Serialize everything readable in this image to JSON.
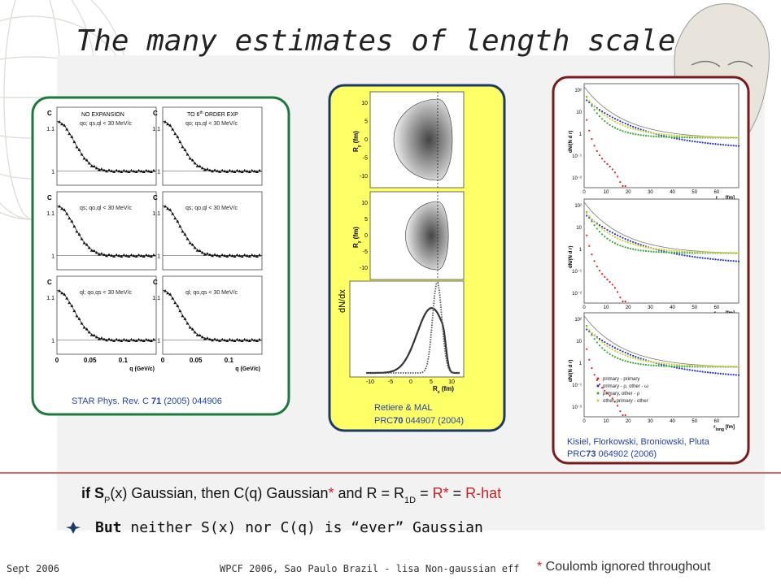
{
  "title": "The many estimates of length scale",
  "star_panel": {
    "headers": [
      [
        "NO EXPANSION"
      ],
      [
        "TO 6",
        "th",
        " ORDER EXP"
      ]
    ],
    "cuts": [
      "qo; qs,ql < 30 MeV/c",
      "qs; qo,ql < 30 MeV/c",
      "ql; qo,qs < 30 MeV/c"
    ],
    "y_label": "C",
    "y_ticks": [
      "1",
      "1.1"
    ],
    "x_ticks": [
      "0",
      "0.05",
      "0.1"
    ],
    "x_label": "q (GeV/c)",
    "caption": [
      "STAR Phys. Rev. C ",
      "71",
      " (2005)  044906"
    ]
  },
  "retiere_panel": {
    "y_label": [
      "R",
      "y",
      " (fm)"
    ],
    "y_ticks": [
      "10",
      "5",
      "0",
      "-5",
      "-10"
    ],
    "dist_label": "dN/dx",
    "x_ticks": [
      "-10",
      "-5",
      "0",
      "5",
      "10"
    ],
    "x_label": [
      "R",
      "x",
      " (fm)"
    ],
    "caption": [
      [
        "Retiere & MAL"
      ],
      [
        "PRC",
        "70",
        " 044907  (2004)"
      ]
    ]
  },
  "kisiel_panel": {
    "y_label": "dN/(N d r)",
    "y_ticks": [
      "10²",
      "10",
      "1",
      "10⁻¹",
      "10⁻²"
    ],
    "x_ticks": [
      "0",
      "10",
      "20",
      "30",
      "40",
      "50",
      "60"
    ],
    "x_labels": [
      [
        "r",
        "out",
        " [fm]"
      ],
      [
        "r",
        "side",
        " [fm]"
      ],
      [
        "r",
        "long",
        " [fm]"
      ]
    ],
    "legend": [
      "primary - primary",
      "primary - ρ, other - ω",
      "primary, other - ρ",
      "other, primary - other"
    ],
    "caption": [
      [
        "Kisiel, Florkowski, Broniowski, Pluta"
      ],
      [
        "PRC",
        "73",
        " 064902  (2006)"
      ]
    ]
  },
  "statement": [
    "if S",
    "P",
    "(x) Gaussian, then C(q) Gaussian",
    "*",
    " and R = R",
    "1D",
    " = ",
    "R*",
    " = ",
    "R-hat"
  ],
  "bullet": [
    "But",
    " neither S(x) nor C(q) is “ever” Gaussian"
  ],
  "footer": {
    "date": "Sept 2006",
    "conference": "WPCF 2006, Sao Paulo Brazil - lisa Non-gaussian eff",
    "note_mark": "*",
    "note": " Coulomb ignored throughout"
  }
}
